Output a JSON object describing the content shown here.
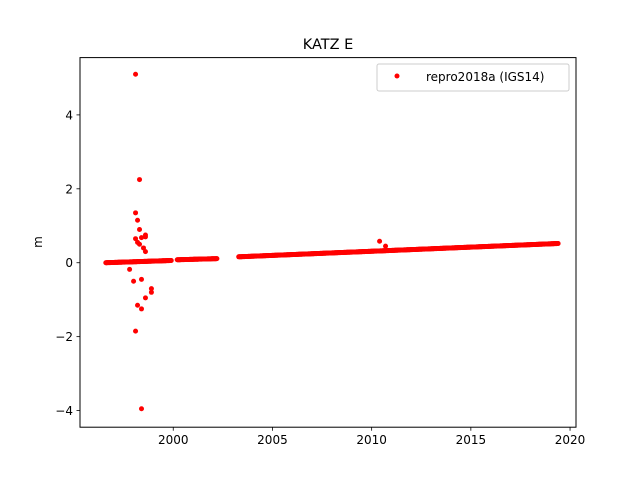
{
  "chart_data": {
    "type": "scatter",
    "title": "KATZ E",
    "xlabel": "",
    "ylabel": "m",
    "xlim": [
      1995.3,
      2020.3
    ],
    "ylim": [
      -4.45,
      5.55
    ],
    "xticks": [
      2000,
      2005,
      2010,
      2015,
      2020
    ],
    "yticks": [
      -4,
      -2,
      0,
      2,
      4
    ],
    "xtick_labels": [
      "2000",
      "2005",
      "2010",
      "2015",
      "2020"
    ],
    "ytick_labels": [
      "−4",
      "−2",
      "0",
      "2",
      "4"
    ],
    "grid": false,
    "legend_position": "top-right",
    "series": [
      {
        "name": "repro2018a (IGS14)",
        "color": "#ff0000",
        "marker": "circle",
        "segments": [
          {
            "x": [
              1996.6,
              1999.9
            ],
            "y": [
              0.0,
              0.06
            ]
          },
          {
            "x": [
              2000.2,
              2002.2
            ],
            "y": [
              0.08,
              0.11
            ]
          },
          {
            "x": [
              2003.3,
              2019.4
            ],
            "y": [
              0.16,
              0.52
            ]
          }
        ],
        "x": [
          1998.1,
          1998.3,
          1998.1,
          1998.2,
          1998.3,
          1998.4,
          1998.6,
          1998.6,
          1998.1,
          1998.2,
          1998.3,
          1998.5,
          1998.6,
          1997.8,
          1998.0,
          1998.4,
          1998.9,
          1998.9,
          1998.6,
          1998.2,
          1998.4,
          1998.1,
          1998.4,
          2010.4,
          2010.7
        ],
        "y": [
          5.1,
          2.25,
          1.35,
          1.15,
          0.9,
          0.68,
          0.75,
          0.7,
          0.65,
          0.55,
          0.5,
          0.4,
          0.3,
          -0.18,
          -0.5,
          -0.45,
          -0.7,
          -0.8,
          -0.95,
          -1.15,
          -1.25,
          -1.85,
          -3.95,
          0.58,
          0.45
        ]
      }
    ]
  }
}
